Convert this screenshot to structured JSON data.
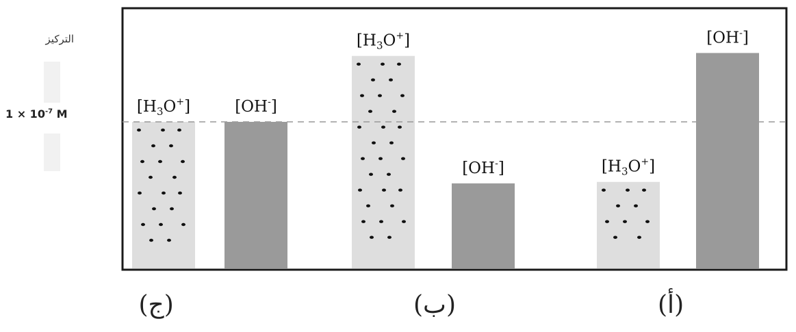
{
  "y_axis": {
    "label": "التركيز",
    "reference": {
      "base": "1 × 10",
      "exp": "-7",
      "unit": " M"
    }
  },
  "chart_data": {
    "type": "bar",
    "title": "",
    "ylabel": "التركيز",
    "reference_line": {
      "label": "1 × 10⁻⁷ M",
      "value": 1.0,
      "style": "dashed"
    },
    "groups": [
      {
        "label": "(ج)",
        "bars": [
          {
            "label": "[H3O+]",
            "value": 1.0,
            "fill": "dotted"
          },
          {
            "label": "[OH-]",
            "value": 1.0,
            "fill": "solid"
          }
        ]
      },
      {
        "label": "(ب)",
        "bars": [
          {
            "label": "[H3O+]",
            "value": 1.45,
            "fill": "dotted"
          },
          {
            "label": "[OH-]",
            "value": 0.58,
            "fill": "solid"
          }
        ]
      },
      {
        "label": "(أ)",
        "bars": [
          {
            "label": "[H3O+]",
            "value": 0.59,
            "fill": "dotted"
          },
          {
            "label": "[OH-]",
            "value": 1.47,
            "fill": "solid"
          }
        ]
      }
    ]
  },
  "colors": {
    "frame": "#1a1a1a",
    "dotted_bar": "#dedede",
    "solid_bar": "#9a9a9a",
    "dot": "#111111",
    "reference_line": "#999999"
  }
}
